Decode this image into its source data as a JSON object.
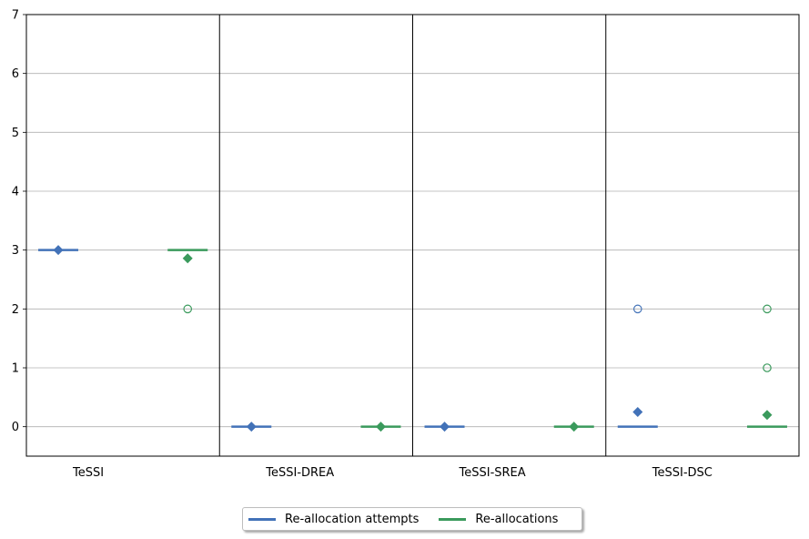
{
  "chart_data": {
    "type": "boxplot",
    "title": "",
    "xlabel": "",
    "ylabel": "",
    "ylim": [
      -0.5,
      7
    ],
    "yticks": [
      0,
      1,
      2,
      3,
      4,
      5,
      6,
      7
    ],
    "grid": "horizontal",
    "legend_position": "below center",
    "categories": [
      "TeSSI",
      "TeSSI-DREA",
      "TeSSI-SREA",
      "TeSSI-DSC"
    ],
    "series": [
      {
        "name": "Re-allocation attempts",
        "color": "#4272b8",
        "median": [
          3,
          0,
          0,
          0
        ],
        "mean": [
          3,
          0,
          0,
          0.25
        ],
        "outliers": [
          [],
          [],
          [],
          [
            2
          ]
        ]
      },
      {
        "name": "Re-allocations",
        "color": "#3a9a5c",
        "median": [
          3,
          0,
          0,
          0
        ],
        "mean": [
          2.86,
          0,
          0,
          0.2
        ],
        "outliers": [
          [
            2
          ],
          [],
          [],
          [
            1,
            2
          ]
        ]
      }
    ]
  }
}
